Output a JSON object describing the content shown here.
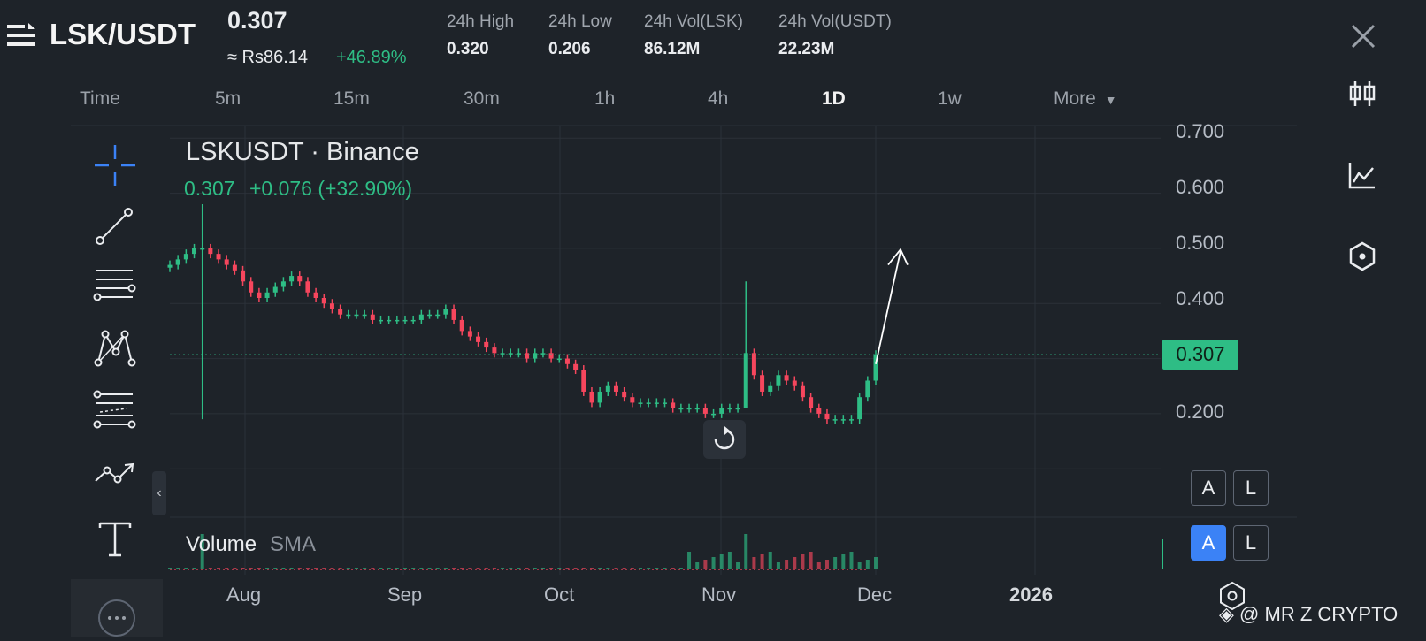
{
  "header": {
    "pair": "LSK/USDT",
    "last_price": "0.307",
    "fiat_price": "≈ Rs86.14",
    "change_pct": "+46.89%",
    "stats": [
      {
        "label": "24h High",
        "value": "0.320"
      },
      {
        "label": "24h Low",
        "value": "0.206"
      },
      {
        "label": "24h Vol(LSK)",
        "value": "86.12M"
      },
      {
        "label": "24h Vol(USDT)",
        "value": "22.23M"
      }
    ]
  },
  "timeframes": [
    "Time",
    "5m",
    "15m",
    "30m",
    "1h",
    "4h",
    "1D",
    "1w",
    "More"
  ],
  "active_timeframe": "1D",
  "chart": {
    "symbol_title": "LSKUSDT · Binance",
    "last_value": "0.307",
    "change_text": "+0.076 (+32.90%)",
    "current_price_tag": "0.307",
    "volume_label": "Volume",
    "volume_indicator": "SMA",
    "price_axis_buttons": [
      "A",
      "L"
    ],
    "volume_axis_buttons": [
      "A",
      "L"
    ]
  },
  "colors": {
    "background": "#1e2329",
    "up": "#2ebd85",
    "down": "#f6465d",
    "accent_blue": "#3b82f6"
  },
  "icons": {
    "menu": "menu-icon",
    "close": "close-icon",
    "right_toolbar": [
      "candlestick-icon",
      "line-chart-icon",
      "indicator-hexagon-icon"
    ],
    "left_toolbar": [
      "crosshair-icon",
      "trendline-icon",
      "horizontal-lines-icon",
      "pattern-icon",
      "fib-icon",
      "path-icon",
      "text-icon"
    ]
  },
  "watermark": "@ MR Z CRYPTO",
  "chart_data": {
    "type": "candlestick",
    "title": "LSKUSDT · Binance",
    "x_tick_labels": [
      "Aug",
      "Sep",
      "Oct",
      "Nov",
      "Dec",
      "2026"
    ],
    "y_tick_labels": [
      "0.700",
      "0.600",
      "0.500",
      "0.400",
      "0.300",
      "0.200"
    ],
    "ylim": [
      0.11,
      0.71
    ],
    "last_price_line": 0.307,
    "series": [
      {
        "date_label": "late Jul",
        "close": [
          0.47,
          0.48,
          0.49,
          0.5,
          0.5,
          0.49,
          0.48
        ]
      },
      {
        "date_label": "Aug",
        "close": [
          0.47,
          0.46,
          0.44,
          0.42,
          0.41,
          0.42,
          0.43,
          0.44,
          0.45,
          0.44,
          0.42,
          0.41,
          0.4,
          0.39,
          0.38,
          0.38
        ]
      },
      {
        "date_label": "Sep",
        "close": [
          0.38,
          0.38,
          0.37,
          0.37,
          0.37,
          0.37,
          0.37,
          0.37,
          0.38,
          0.38,
          0.38,
          0.39,
          0.37,
          0.35,
          0.34,
          0.33,
          0.32,
          0.31,
          0.31,
          0.31,
          0.31,
          0.3
        ]
      },
      {
        "date_label": "Oct",
        "close": [
          0.31,
          0.31,
          0.3,
          0.3,
          0.29,
          0.28,
          0.24,
          0.22,
          0.24,
          0.25,
          0.24,
          0.23,
          0.22,
          0.22,
          0.22,
          0.22,
          0.22,
          0.21,
          0.21,
          0.21,
          0.21,
          0.2
        ]
      },
      {
        "date_label": "Nov",
        "close": [
          0.2,
          0.21,
          0.21,
          0.21,
          0.31,
          0.27,
          0.24,
          0.25,
          0.27,
          0.26,
          0.25,
          0.23,
          0.21,
          0.2,
          0.19,
          0.19,
          0.19,
          0.19,
          0.23,
          0.26,
          0.307
        ]
      }
    ],
    "high_spikes": [
      {
        "near": "late Jul",
        "high": 0.58,
        "low": 0.19
      },
      {
        "near": "mid Nov",
        "high": 0.44,
        "low": 0.21
      }
    ],
    "annotation": "upward arrow drawn from ~0.29 toward ~0.50 at Dec"
  }
}
